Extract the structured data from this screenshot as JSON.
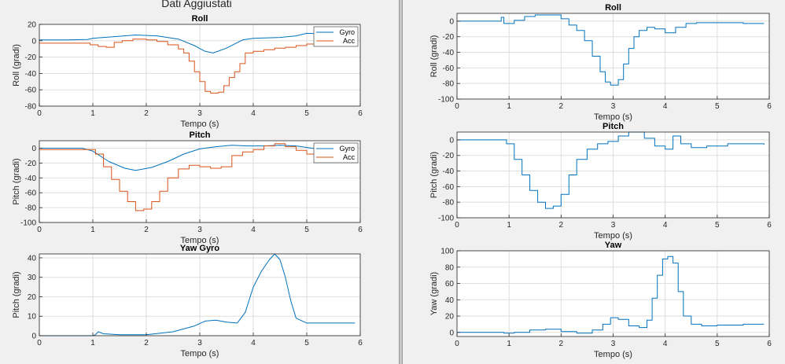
{
  "figures": {
    "left": {
      "suptitle": "Dati Aggiustati"
    }
  },
  "colors": {
    "gyro": "#0072bd",
    "acc": "#d95319",
    "grid": "#dedede",
    "axis": "#262626",
    "bg": "#f0f0f0"
  },
  "chart_data": [
    {
      "id": "left-roll",
      "type": "line",
      "title": "Roll",
      "xlabel": "Tempo (s)",
      "ylabel": "Roll (gradi)",
      "xlim": [
        0,
        6
      ],
      "ylim": [
        -80,
        20
      ],
      "xticks": [
        0,
        1,
        2,
        3,
        4,
        5,
        6
      ],
      "yticks": [
        -80,
        -60,
        -40,
        -20,
        0,
        20
      ],
      "grid": true,
      "legend": "top-right",
      "series": [
        {
          "name": "Gyro",
          "color": "#0072bd",
          "step": false,
          "x": [
            0,
            0.5,
            0.9,
            1.0,
            1.5,
            1.8,
            2.2,
            2.6,
            2.9,
            3.1,
            3.25,
            3.5,
            3.8,
            4.0,
            4.5,
            4.8,
            5.0,
            5.5,
            5.9
          ],
          "y": [
            1,
            1,
            1.5,
            3,
            5.5,
            7,
            6,
            2,
            -6,
            -13,
            -15,
            -9,
            1,
            3,
            4,
            6,
            9,
            8,
            8
          ]
        },
        {
          "name": "Acc",
          "color": "#d95319",
          "step": true,
          "x": [
            0,
            0.85,
            0.95,
            1.1,
            1.25,
            1.4,
            1.55,
            1.75,
            2.0,
            2.2,
            2.4,
            2.6,
            2.7,
            2.8,
            2.9,
            3.0,
            3.1,
            3.2,
            3.35,
            3.45,
            3.55,
            3.65,
            3.75,
            3.85,
            4.0,
            4.2,
            4.4,
            4.6,
            4.8,
            5.0,
            5.2,
            5.5,
            5.9
          ],
          "y": [
            -3,
            -3,
            -5,
            -7,
            -8,
            -2,
            0,
            2,
            1,
            -1,
            -5,
            -10,
            -15,
            -25,
            -38,
            -50,
            -62,
            -64,
            -63,
            -55,
            -45,
            -38,
            -28,
            -15,
            -13,
            -11,
            -9,
            -8,
            -6,
            -4,
            2,
            3,
            4
          ]
        }
      ]
    },
    {
      "id": "left-pitch",
      "type": "line",
      "title": "Pitch",
      "xlabel": "Tempo (s)",
      "ylabel": "Pitch (gradi)",
      "xlim": [
        0,
        6
      ],
      "ylim": [
        -100,
        10
      ],
      "xticks": [
        0,
        1,
        2,
        3,
        4,
        5,
        6
      ],
      "yticks": [
        -100,
        -80,
        -60,
        -40,
        -20,
        0
      ],
      "grid": true,
      "legend": "top-right",
      "series": [
        {
          "name": "Gyro",
          "color": "#0072bd",
          "step": false,
          "x": [
            0,
            0.8,
            1.0,
            1.3,
            1.6,
            1.8,
            2.1,
            2.4,
            2.7,
            3.0,
            3.3,
            3.6,
            3.9,
            4.2,
            4.5,
            4.8,
            5.1,
            5.5,
            5.9
          ],
          "y": [
            0,
            0,
            -4,
            -18,
            -27,
            -30,
            -26,
            -18,
            -8,
            -1,
            2,
            4,
            3,
            3,
            4,
            3,
            0,
            -5,
            -4
          ]
        },
        {
          "name": "Acc",
          "color": "#d95319",
          "step": true,
          "x": [
            0,
            0.9,
            1.05,
            1.2,
            1.35,
            1.5,
            1.65,
            1.8,
            1.95,
            2.1,
            2.25,
            2.4,
            2.6,
            2.8,
            3.0,
            3.2,
            3.4,
            3.6,
            3.8,
            4.0,
            4.2,
            4.4,
            4.6,
            4.8,
            5.0,
            5.2,
            5.5,
            5.9
          ],
          "y": [
            -2,
            -2,
            -8,
            -25,
            -42,
            -58,
            -72,
            -84,
            -82,
            -72,
            -58,
            -40,
            -28,
            -23,
            -25,
            -27,
            -25,
            -10,
            -5,
            -2,
            3,
            6,
            2,
            -3,
            -8,
            -12,
            -13,
            -14
          ]
        }
      ]
    },
    {
      "id": "left-yaw",
      "type": "line",
      "title": "Yaw Gyro",
      "xlabel": "Tempo (s)",
      "ylabel": "Pitch (gradi)",
      "xlim": [
        0,
        6
      ],
      "ylim": [
        0,
        42
      ],
      "xticks": [
        0,
        1,
        2,
        3,
        4,
        5,
        6
      ],
      "yticks": [
        0,
        10,
        20,
        30,
        40
      ],
      "grid": true,
      "legend": "none",
      "series": [
        {
          "name": "Gyro",
          "color": "#0072bd",
          "step": false,
          "x": [
            0,
            0.9,
            1.0,
            1.05,
            1.1,
            1.2,
            1.5,
            2.0,
            2.5,
            2.9,
            3.1,
            3.3,
            3.5,
            3.7,
            3.85,
            4.0,
            4.15,
            4.3,
            4.4,
            4.5,
            4.6,
            4.7,
            4.8,
            5.0,
            5.5,
            5.9
          ],
          "y": [
            0,
            0,
            -0.5,
            0.5,
            2,
            1,
            0.5,
            0.5,
            2,
            5,
            7.5,
            8,
            7,
            6.5,
            12,
            25,
            33,
            39,
            43,
            39,
            30,
            18,
            9,
            6.5,
            6.5,
            6.5
          ]
        }
      ]
    },
    {
      "id": "right-roll",
      "type": "line",
      "title": "Roll",
      "xlabel": "Tempo (s)",
      "ylabel": "Roll (gradi)",
      "xlim": [
        0,
        6
      ],
      "ylim": [
        -100,
        10
      ],
      "xticks": [
        0,
        1,
        2,
        3,
        4,
        5,
        6
      ],
      "yticks": [
        -100,
        -80,
        -60,
        -40,
        -20,
        0
      ],
      "grid": true,
      "legend": "none",
      "series": [
        {
          "name": "Roll",
          "color": "#0072bd",
          "step": true,
          "x": [
            0,
            0.8,
            0.85,
            0.9,
            1.1,
            1.3,
            1.5,
            1.8,
            2.0,
            2.15,
            2.3,
            2.45,
            2.6,
            2.75,
            2.85,
            2.95,
            3.1,
            3.2,
            3.3,
            3.4,
            3.5,
            3.65,
            3.8,
            4.0,
            4.2,
            4.4,
            4.6,
            5.0,
            5.5,
            5.9
          ],
          "y": [
            0,
            0,
            5,
            -3,
            1,
            6,
            8,
            8,
            3,
            -5,
            -12,
            -25,
            -45,
            -65,
            -78,
            -82,
            -75,
            -55,
            -35,
            -20,
            -12,
            -8,
            -10,
            -15,
            -8,
            -3,
            -2,
            -2,
            -3,
            -3
          ]
        }
      ]
    },
    {
      "id": "right-pitch",
      "type": "line",
      "title": "Pitch",
      "xlabel": "Tempo (s)",
      "ylabel": "Pitch (gradi)",
      "xlim": [
        0,
        6
      ],
      "ylim": [
        -100,
        10
      ],
      "xticks": [
        0,
        1,
        2,
        3,
        4,
        5,
        6
      ],
      "yticks": [
        -100,
        -80,
        -60,
        -40,
        -20,
        0
      ],
      "grid": true,
      "legend": "none",
      "series": [
        {
          "name": "Pitch",
          "color": "#0072bd",
          "step": true,
          "x": [
            0,
            0.8,
            0.95,
            1.1,
            1.25,
            1.4,
            1.55,
            1.7,
            1.85,
            2.0,
            2.15,
            2.3,
            2.5,
            2.7,
            2.9,
            3.1,
            3.3,
            3.45,
            3.6,
            3.8,
            4.0,
            4.15,
            4.3,
            4.5,
            4.8,
            5.2,
            5.5,
            5.9
          ],
          "y": [
            0,
            0,
            -5,
            -25,
            -45,
            -65,
            -80,
            -88,
            -85,
            -70,
            -45,
            -25,
            -12,
            -5,
            -2,
            5,
            10,
            11,
            2,
            -8,
            -12,
            5,
            -5,
            -10,
            -8,
            -5,
            -5,
            -6
          ]
        }
      ]
    },
    {
      "id": "right-yaw",
      "type": "line",
      "title": "Yaw",
      "xlabel": "Tempo (s)",
      "ylabel": "Yaw (gradi)",
      "xlim": [
        0,
        6
      ],
      "ylim": [
        -5,
        100
      ],
      "xticks": [
        0,
        1,
        2,
        3,
        4,
        5,
        6
      ],
      "yticks": [
        0,
        20,
        40,
        60,
        80,
        100
      ],
      "grid": true,
      "legend": "none",
      "series": [
        {
          "name": "Yaw",
          "color": "#0072bd",
          "step": true,
          "x": [
            0,
            0.9,
            1.1,
            1.4,
            1.7,
            2.0,
            2.3,
            2.6,
            2.8,
            2.95,
            3.1,
            3.3,
            3.5,
            3.65,
            3.75,
            3.85,
            3.95,
            4.05,
            4.15,
            4.25,
            4.35,
            4.5,
            4.7,
            5.0,
            5.5,
            5.9
          ],
          "y": [
            0,
            -1,
            0,
            3,
            4,
            1,
            -1,
            3,
            10,
            18,
            16,
            8,
            6,
            15,
            42,
            70,
            90,
            93,
            85,
            50,
            20,
            10,
            8,
            9,
            10,
            10
          ]
        }
      ]
    }
  ]
}
